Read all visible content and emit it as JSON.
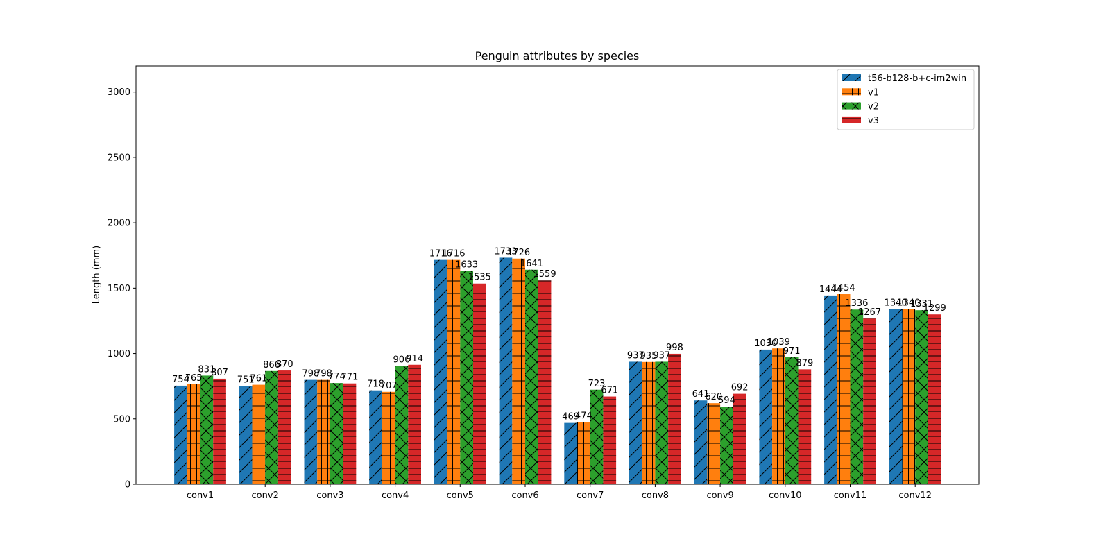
{
  "chart_data": {
    "type": "bar",
    "title": "Penguin attributes by species",
    "xlabel": "",
    "ylabel": "Length (mm)",
    "ylim": [
      0,
      3200
    ],
    "yticks": [
      0,
      500,
      1000,
      1500,
      2000,
      2500,
      3000
    ],
    "categories": [
      "conv1",
      "conv2",
      "conv3",
      "conv4",
      "conv5",
      "conv6",
      "conv7",
      "conv8",
      "conv9",
      "conv10",
      "conv11",
      "conv12"
    ],
    "legend_position": "top-right",
    "grid": false,
    "series": [
      {
        "name": "t56-b128-b+c-im2win",
        "color": "#1f77b4",
        "hatch": "diagonal",
        "values": [
          754,
          751,
          798,
          718,
          1716,
          1733,
          469,
          937,
          641,
          1030,
          1444,
          1340
        ]
      },
      {
        "name": "v1",
        "color": "#ff7f0e",
        "hatch": "grid",
        "values": [
          765,
          761,
          798,
          707,
          1716,
          1726,
          474,
          935,
          620,
          1039,
          1454,
          1340
        ]
      },
      {
        "name": "v2",
        "color": "#2ca02c",
        "hatch": "cross",
        "values": [
          831,
          866,
          774,
          906,
          1633,
          1641,
          723,
          937,
          594,
          971,
          1336,
          1331
        ]
      },
      {
        "name": "v3",
        "color": "#d62728",
        "hatch": "horizontal",
        "values": [
          807,
          870,
          771,
          914,
          1535,
          1559,
          671,
          998,
          692,
          879,
          1267,
          1299
        ]
      }
    ]
  }
}
